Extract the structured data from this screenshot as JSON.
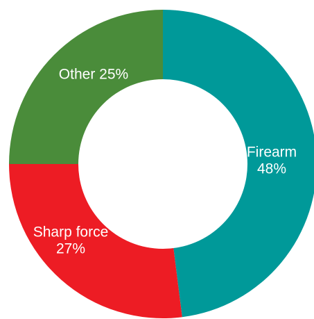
{
  "chart_data": {
    "type": "pie",
    "title": "",
    "donut": true,
    "start": "top",
    "direction": "clockwise",
    "slices": [
      {
        "label": "Firearm",
        "value": 48,
        "value_text": "48%",
        "color": "#009999",
        "label_lines": [
          "Firearm",
          "48%"
        ]
      },
      {
        "label": "Sharp force",
        "value": 27,
        "value_text": "27%",
        "color": "#ed1c24",
        "label_lines": [
          "Sharp force",
          "27%"
        ]
      },
      {
        "label": "Other",
        "value": 25,
        "value_text": "25%",
        "color": "#4a8c3a",
        "label_lines": [
          "Other 25%"
        ]
      }
    ]
  }
}
